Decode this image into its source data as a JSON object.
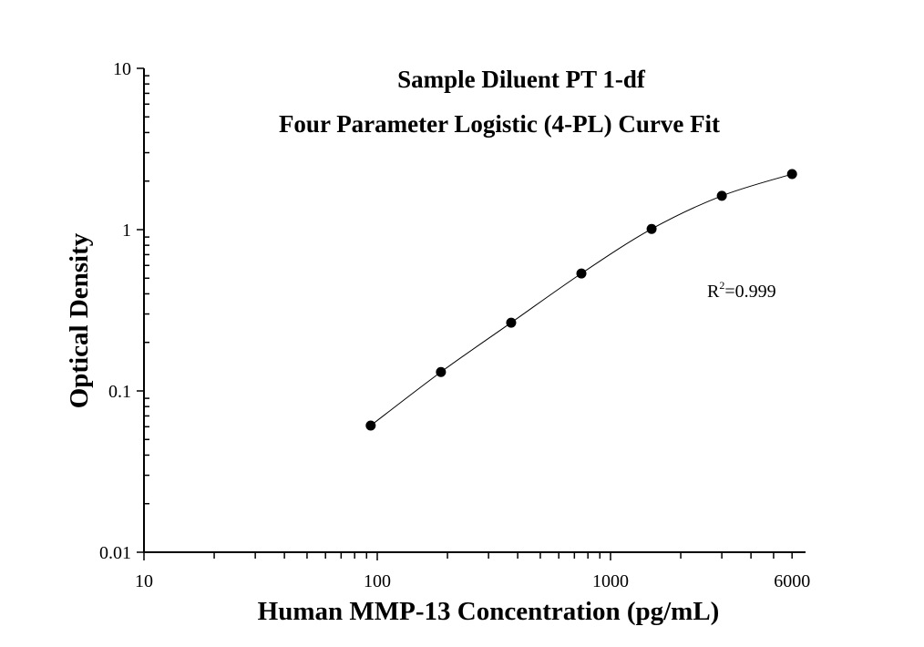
{
  "chart_data": {
    "type": "scatter",
    "title": "Sample Diluent PT 1-df",
    "subtitle": "Four Parameter Logistic (4-PL) Curve Fit",
    "xlabel": "Human MMP-13 Concentration (pg/mL)",
    "ylabel": "Optical Density",
    "x_scale": "log",
    "y_scale": "log",
    "xlim": [
      10,
      6000
    ],
    "ylim": [
      0.01,
      10
    ],
    "x_ticks": [
      10,
      100,
      1000,
      6000
    ],
    "x_tick_labels": [
      "10",
      "100",
      "1000",
      "6000"
    ],
    "y_ticks": [
      0.01,
      0.1,
      1,
      10
    ],
    "y_tick_labels": [
      "0.01",
      "0.1",
      "1",
      "10"
    ],
    "grid": false,
    "annotation": {
      "text_base": "R",
      "text_sup": "2",
      "text_rest": "=0.999"
    },
    "series": [
      {
        "x": [
          93.75,
          187.5,
          375,
          750,
          1500,
          3000,
          6000
        ],
        "y": [
          0.061,
          0.131,
          0.265,
          0.535,
          1.01,
          1.62,
          2.21
        ],
        "marker": "filled-circle",
        "fit_line": "4-PL"
      }
    ],
    "colors": {
      "points": "#000000",
      "line": "#000000"
    }
  }
}
